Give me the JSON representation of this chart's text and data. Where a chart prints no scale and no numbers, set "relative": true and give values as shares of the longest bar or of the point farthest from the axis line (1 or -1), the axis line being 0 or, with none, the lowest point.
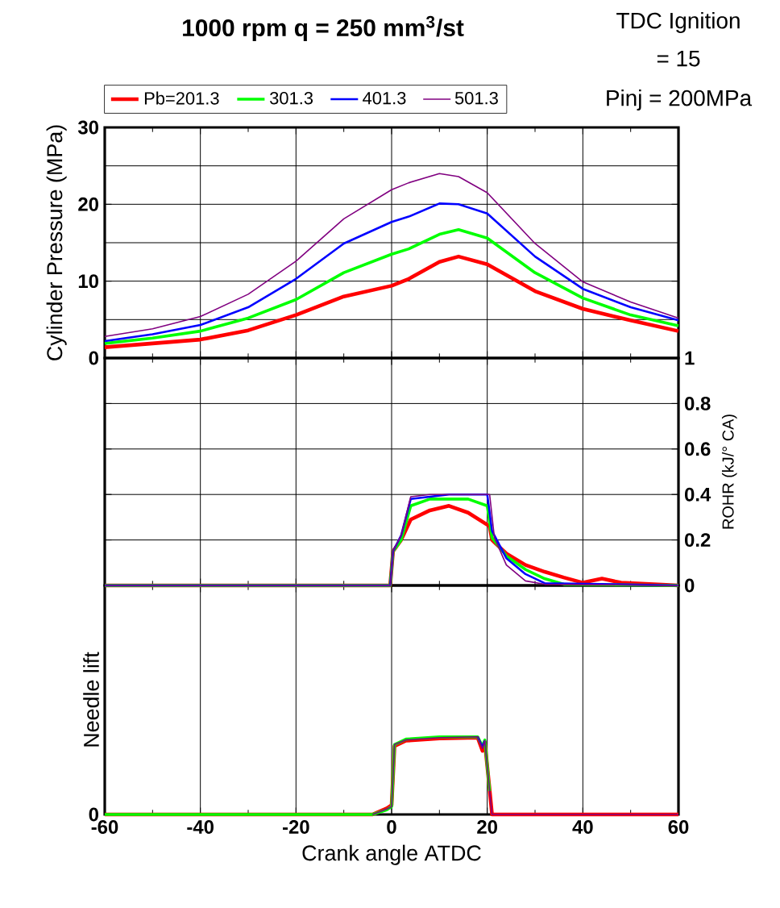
{
  "chart_data": [
    {
      "type": "line",
      "title": "1000 rpm   q = 250 mm$^{3}$/st",
      "annotations": [
        "TDC Ignition",
        "= 15",
        "Pinj = 200MPa"
      ],
      "ylabel": "Cylinder Pressure (MPa)",
      "xlim": [
        -60,
        60
      ],
      "xticks": [
        -60,
        -40,
        -20,
        0,
        20,
        40,
        60
      ],
      "ylim": [
        0,
        30
      ],
      "yticks": [
        0,
        10,
        20,
        30
      ],
      "tick_labels": "y",
      "grid": true,
      "legend": "top",
      "marker": "none",
      "line_style": "solid",
      "series": [
        {
          "name": "Pb=201.3",
          "color": "#ff0000",
          "x": [
            -60,
            -50,
            -40,
            -30,
            -20,
            -10,
            0,
            3.6,
            10,
            14,
            20,
            30,
            40,
            50,
            60
          ],
          "values": [
            1.4,
            1.9,
            2.4,
            3.6,
            5.6,
            8.0,
            9.4,
            10.3,
            12.5,
            13.2,
            12.2,
            8.7,
            6.4,
            4.9,
            3.5
          ]
        },
        {
          "name": "301.3",
          "color": "#00ff00",
          "x": [
            -60,
            -50,
            -40,
            -30,
            -20,
            -10,
            0,
            3.6,
            10,
            14,
            20,
            30,
            40,
            50,
            60
          ],
          "values": [
            1.9,
            2.6,
            3.5,
            5.2,
            7.6,
            11.1,
            13.5,
            14.2,
            16.1,
            16.7,
            15.6,
            11.1,
            7.8,
            5.6,
            4.2
          ]
        },
        {
          "name": "401.3",
          "color": "#0000ff",
          "x": [
            -60,
            -50,
            -40,
            -30,
            -20,
            -10,
            0,
            3.6,
            10,
            14,
            20,
            30,
            40,
            50,
            60
          ],
          "values": [
            2.2,
            3.1,
            4.3,
            6.6,
            10.3,
            14.9,
            17.7,
            18.4,
            20.1,
            20.0,
            18.8,
            13.2,
            9.0,
            6.6,
            4.9
          ]
        },
        {
          "name": "501.3",
          "color": "#800080",
          "x": [
            -60,
            -50,
            -40,
            -30,
            -20,
            -10,
            0,
            3.6,
            10,
            14,
            20,
            30,
            40,
            50,
            60
          ],
          "values": [
            2.8,
            3.8,
            5.4,
            8.3,
            12.6,
            18.1,
            21.9,
            22.8,
            24.0,
            23.6,
            21.5,
            14.9,
            9.9,
            7.3,
            5.2
          ]
        }
      ]
    },
    {
      "type": "line",
      "ylabel": "ROHR (kJ/° CA)",
      "xlim": [
        -60,
        60
      ],
      "xticks": [
        -60,
        -40,
        -20,
        0,
        20,
        40,
        60
      ],
      "ylim": [
        0,
        1
      ],
      "yticks": [
        0,
        0.2,
        0.4,
        0.6,
        0.8,
        1
      ],
      "tick_labels": "y",
      "grid": true,
      "marker": "none",
      "line_style": "solid",
      "series": [
        {
          "color": "#ff0000",
          "x": [
            -60,
            -0.3,
            0.3,
            2,
            4,
            8,
            12,
            16,
            19,
            20.5,
            21,
            24,
            28,
            32,
            36,
            40,
            44,
            48,
            60
          ],
          "values": [
            0,
            0,
            0.15,
            0.2,
            0.29,
            0.33,
            0.35,
            0.32,
            0.28,
            0.26,
            0.2,
            0.14,
            0.09,
            0.06,
            0.035,
            0.012,
            0.03,
            0.012,
            0
          ]
        },
        {
          "color": "#00ff00",
          "x": [
            -60,
            -0.3,
            0.3,
            2,
            4,
            8,
            12,
            16,
            20,
            21,
            24,
            28,
            32,
            36,
            60
          ],
          "values": [
            0,
            0,
            0.15,
            0.2,
            0.35,
            0.38,
            0.38,
            0.38,
            0.35,
            0.21,
            0.13,
            0.07,
            0.03,
            0.005,
            0
          ]
        },
        {
          "color": "#0000ff",
          "x": [
            -60,
            -0.3,
            0.3,
            2,
            4,
            8,
            12,
            16,
            20,
            21,
            24,
            28,
            32,
            60
          ],
          "values": [
            0,
            0,
            0.15,
            0.22,
            0.38,
            0.39,
            0.4,
            0.4,
            0.4,
            0.24,
            0.12,
            0.05,
            0.01,
            0
          ]
        },
        {
          "color": "#800080",
          "x": [
            -60,
            -0.3,
            0.3,
            2,
            4,
            8,
            12,
            16,
            20.5,
            21.5,
            24,
            28,
            32,
            60
          ],
          "values": [
            0,
            0,
            0.15,
            0.22,
            0.39,
            0.4,
            0.4,
            0.4,
            0.4,
            0.21,
            0.09,
            0.02,
            0.005,
            0
          ]
        }
      ]
    },
    {
      "type": "line",
      "relative": true,
      "ylabel": "Needle  lift",
      "xlabel": "Crank angle  ATDC",
      "xlim": [
        -60,
        60
      ],
      "xticks": [
        -60,
        -40,
        -20,
        0,
        20,
        40,
        60
      ],
      "annotations": [
        "0"
      ],
      "grid": "x",
      "marker": "none",
      "line_style": "solid",
      "series": [
        {
          "color": "#ff0000",
          "x": [
            -60,
            -4,
            -1,
            0,
            0.6,
            3,
            10,
            18,
            19,
            19.5,
            20.5,
            21,
            60
          ],
          "values": [
            0,
            0,
            0.08,
            0.12,
            0.88,
            0.95,
            0.98,
            0.99,
            0.82,
            0.93,
            0.32,
            0,
            0
          ]
        },
        {
          "color": "#00ff00",
          "x": [
            -60,
            -4,
            -1,
            0,
            0.6,
            3,
            10,
            18,
            19,
            19.5,
            20.5
          ],
          "values": [
            0,
            0,
            0.06,
            0.1,
            0.9,
            0.97,
            1,
            1,
            0.88,
            0.96,
            0.3
          ]
        },
        {
          "color": "#0000ff",
          "x": [
            18,
            19,
            19.5
          ],
          "values": [
            1,
            0.87,
            0.95
          ]
        },
        {
          "color": "#800080",
          "x": [
            -4,
            -1,
            0,
            0.6,
            3,
            10,
            18,
            19,
            19.5,
            20.5,
            21,
            60
          ],
          "values": [
            0,
            0.07,
            0.1,
            0.9,
            0.96,
            0.99,
            1,
            0.85,
            0.95,
            0.3,
            0,
            0
          ]
        }
      ]
    }
  ]
}
